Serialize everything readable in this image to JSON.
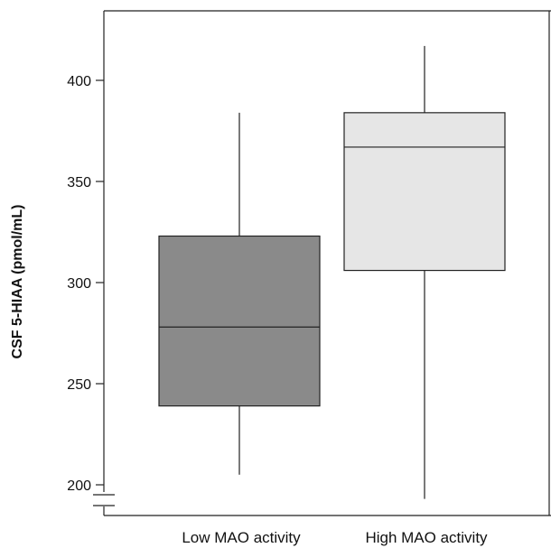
{
  "chart_data": {
    "type": "boxplot",
    "title": "",
    "xlabel": "",
    "ylabel": "CSF 5-HIAA (pmol/mL)",
    "ylim": [
      188,
      430
    ],
    "y_ticks": [
      200,
      250,
      300,
      350,
      400
    ],
    "y_tick_labels": [
      "200",
      "250",
      "300",
      "350",
      "400"
    ],
    "axis_break": true,
    "grid": false,
    "categories": [
      "Low MAO activity",
      "High MAO activity"
    ],
    "boxes": [
      {
        "category": "Low MAO activity",
        "min": 205,
        "q1": 239,
        "median": 278,
        "q3": 323,
        "max": 384,
        "fill": "#8a8a8a"
      },
      {
        "category": "High MAO activity",
        "min": 193,
        "q1": 306,
        "median": 367,
        "q3": 384,
        "max": 417,
        "fill": "#e6e6e6"
      }
    ]
  }
}
